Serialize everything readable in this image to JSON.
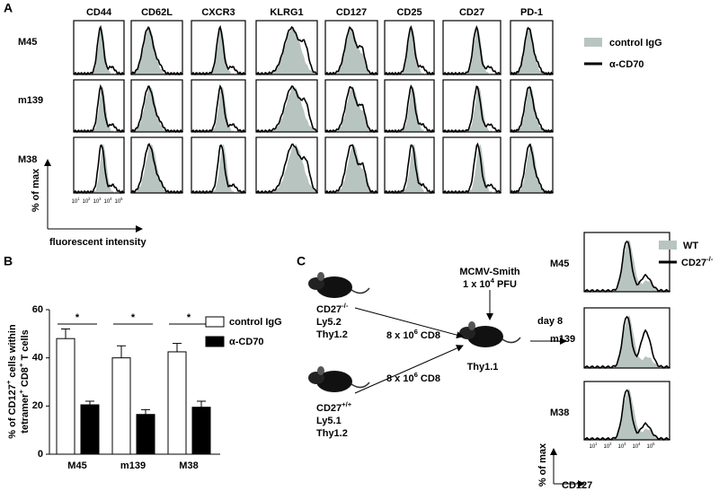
{
  "panel_a": {
    "label": "A",
    "columns": [
      "CD44",
      "CD62L",
      "CXCR3",
      "KLRG1",
      "CD127",
      "CD25",
      "CD27",
      "PD-1"
    ],
    "rows": [
      "M45",
      "m139",
      "M38"
    ],
    "legend": [
      "control IgG",
      "α-CD70"
    ],
    "y_axis_label": "% of max",
    "x_axis_label": "fluorescent intensity",
    "x_tick_labels": [
      [
        {
          "text": "10"
        },
        {
          "text": "1",
          "sup": true
        }
      ],
      [
        {
          "text": "10"
        },
        {
          "text": "2",
          "sup": true
        }
      ],
      [
        {
          "text": "10"
        },
        {
          "text": "3",
          "sup": true
        }
      ],
      [
        {
          "text": "10"
        },
        {
          "text": "4",
          "sup": true
        }
      ],
      [
        {
          "text": "10"
        },
        {
          "text": "5",
          "sup": true
        }
      ]
    ]
  },
  "chart_data": {
    "type": "bar",
    "panel_label": "B",
    "y_label_lines": [
      [
        {
          "text": "% of CD127"
        },
        {
          "text": "+",
          "sup": true
        },
        {
          "text": " cells within"
        }
      ],
      [
        {
          "text": "tetramer"
        },
        {
          "text": "+",
          "sup": true
        },
        {
          "text": " CD8"
        },
        {
          "text": "+",
          "sup": true
        },
        {
          "text": " T cells"
        }
      ]
    ],
    "categories": [
      "M45",
      "m139",
      "M38"
    ],
    "series": [
      {
        "name": "control IgG",
        "color": "#ffffff",
        "values": [
          48,
          40,
          42.5
        ],
        "errors": [
          4,
          5,
          3.5
        ]
      },
      {
        "name": "α-CD70",
        "color": "#000000",
        "values": [
          20.5,
          16.5,
          19.5
        ],
        "errors": [
          1.5,
          2,
          2.5
        ]
      }
    ],
    "annotations": [
      "*",
      "*",
      "*"
    ],
    "ylim": [
      0,
      60
    ],
    "yticks": [
      0,
      20,
      40,
      60
    ]
  },
  "panel_c": {
    "label": "C",
    "donors": [
      {
        "genotype": [
          {
            "text": "CD27"
          },
          {
            "text": "-/-",
            "sup": true
          }
        ],
        "lines": [
          "Ly5.2",
          "Thy1.2"
        ]
      },
      {
        "genotype": [
          {
            "text": "CD27"
          },
          {
            "text": "+/+",
            "sup": true
          }
        ],
        "lines": [
          "Ly5.1",
          "Thy1.2"
        ]
      }
    ],
    "transfer": [
      [
        {
          "text": "8 x 10"
        },
        {
          "text": "6",
          "sup": true
        },
        {
          "text": " CD8"
        }
      ],
      [
        {
          "text": "8 x 10"
        },
        {
          "text": "6",
          "sup": true
        },
        {
          "text": " CD8"
        }
      ]
    ],
    "infection": [
      [
        {
          "text": "MCMV-Smith"
        }
      ],
      [
        {
          "text": "1 x 10"
        },
        {
          "text": "4",
          "sup": true
        },
        {
          "text": " PFU"
        }
      ]
    ],
    "recipient": "Thy1.1",
    "time": "day 8",
    "rows": [
      "M45",
      "m139",
      "M38"
    ],
    "legend": [
      [
        {
          "text": "WT"
        }
      ],
      [
        {
          "text": "CD27"
        },
        {
          "text": "-/-",
          "sup": true
        }
      ]
    ],
    "y_axis_label": "% of max",
    "x_axis_label": "CD127",
    "x_tick_labels": [
      [
        {
          "text": "10"
        },
        {
          "text": "1",
          "sup": true
        }
      ],
      [
        {
          "text": "10"
        },
        {
          "text": "2",
          "sup": true
        }
      ],
      [
        {
          "text": "10"
        },
        {
          "text": "3",
          "sup": true
        }
      ],
      [
        {
          "text": "10"
        },
        {
          "text": "4",
          "sup": true
        }
      ],
      [
        {
          "text": "10"
        },
        {
          "text": "5",
          "sup": true
        }
      ]
    ]
  }
}
